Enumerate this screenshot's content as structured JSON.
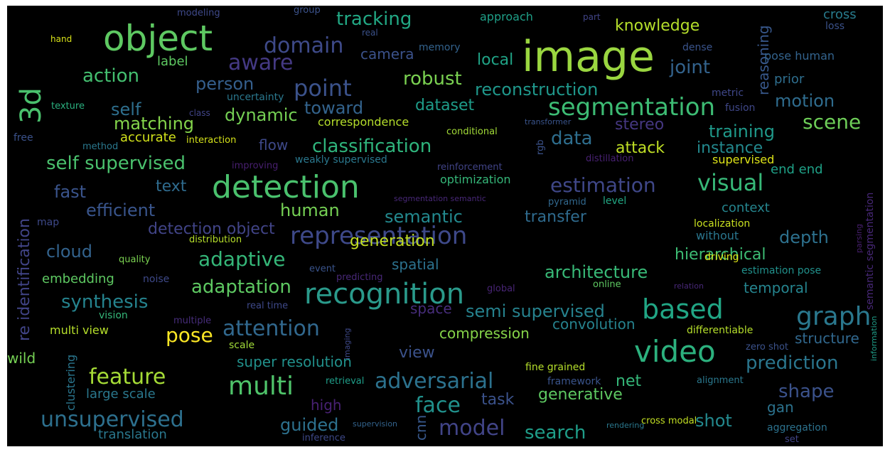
{
  "words": [
    {
      "text": "image",
      "color": "#9ad640"
    },
    {
      "text": "object",
      "color": "#5ec962"
    },
    {
      "text": "detection",
      "color": "#4ac16d"
    },
    {
      "text": "recognition",
      "color": "#2a9a8b"
    },
    {
      "text": "video",
      "color": "#2cb17e"
    },
    {
      "text": "representation",
      "color": "#3e4989"
    },
    {
      "text": "3d",
      "color": "#4ac16d"
    },
    {
      "text": "segmentation",
      "color": "#3dbc74"
    },
    {
      "text": "based",
      "color": "#21a685"
    },
    {
      "text": "graph",
      "color": "#2a788e"
    },
    {
      "text": "multi",
      "color": "#4fc46a"
    },
    {
      "text": "point",
      "color": "#3b528b"
    },
    {
      "text": "domain",
      "color": "#3e4a89"
    },
    {
      "text": "adversarial",
      "color": "#2c728e"
    },
    {
      "text": "unsupervised",
      "color": "#2d708e"
    },
    {
      "text": "model",
      "color": "#414487"
    },
    {
      "text": "attention",
      "color": "#31688e"
    },
    {
      "text": "feature",
      "color": "#a5db36"
    },
    {
      "text": "face",
      "color": "#21918c"
    },
    {
      "text": "visual",
      "color": "#37b878"
    },
    {
      "text": "estimation",
      "color": "#3f4788"
    },
    {
      "text": "prediction",
      "color": "#2a768e"
    },
    {
      "text": "shape",
      "color": "#3b528b"
    },
    {
      "text": "classification",
      "color": "#2fb47c"
    },
    {
      "text": "reconstruction",
      "color": "#1f978b"
    },
    {
      "text": "tracking",
      "color": "#22a884"
    },
    {
      "text": "aware",
      "color": "#443983"
    },
    {
      "text": "scene",
      "color": "#6ece58"
    },
    {
      "text": "self supervised",
      "color": "#4ac16d"
    },
    {
      "text": "synthesis",
      "color": "#25838e"
    },
    {
      "text": "adaptive",
      "color": "#35b779"
    },
    {
      "text": "adaptation",
      "color": "#5ec962"
    },
    {
      "text": "pose",
      "color": "#fde725"
    },
    {
      "text": "semi supervised",
      "color": "#26828e"
    },
    {
      "text": "architecture",
      "color": "#38b977"
    },
    {
      "text": "search",
      "color": "#1f9e89"
    },
    {
      "text": "guided",
      "color": "#2d718e"
    },
    {
      "text": "action",
      "color": "#44bf70"
    },
    {
      "text": "robust",
      "color": "#7ad151"
    },
    {
      "text": "knowledge",
      "color": "#b5de2b"
    },
    {
      "text": "joint",
      "color": "#33638d"
    },
    {
      "text": "dynamic",
      "color": "#75d054"
    },
    {
      "text": "toward",
      "color": "#33638d"
    },
    {
      "text": "dataset",
      "color": "#1e9c89"
    },
    {
      "text": "motion",
      "color": "#2f6c8e"
    },
    {
      "text": "training",
      "color": "#1f998a"
    },
    {
      "text": "matching",
      "color": "#84d44b"
    },
    {
      "text": "self",
      "color": "#2e6f8e"
    },
    {
      "text": "person",
      "color": "#355f8d"
    },
    {
      "text": "camera",
      "color": "#3b528b"
    },
    {
      "text": "local",
      "color": "#20a386"
    },
    {
      "text": "data",
      "color": "#2e6e8e"
    },
    {
      "text": "stereo",
      "color": "#453781"
    },
    {
      "text": "instance",
      "color": "#23898e"
    },
    {
      "text": "attack",
      "color": "#c0df25"
    },
    {
      "text": "fast",
      "color": "#3a548c"
    },
    {
      "text": "text",
      "color": "#2f6b8e"
    },
    {
      "text": "efficient",
      "color": "#39558c"
    },
    {
      "text": "human",
      "color": "#75d054"
    },
    {
      "text": "semantic",
      "color": "#23898e"
    },
    {
      "text": "transfer",
      "color": "#2f6b8e"
    },
    {
      "text": "context",
      "color": "#25858e"
    },
    {
      "text": "depth",
      "color": "#2d718e"
    },
    {
      "text": "cloud",
      "color": "#33638d"
    },
    {
      "text": "detection object",
      "color": "#414487"
    },
    {
      "text": "generation",
      "color": "#c2df23"
    },
    {
      "text": "hierarchical",
      "color": "#3dbc74"
    },
    {
      "text": "spatial",
      "color": "#2c728e"
    },
    {
      "text": "embedding",
      "color": "#5ec962"
    },
    {
      "text": "temporal",
      "color": "#25848e"
    },
    {
      "text": "net",
      "color": "#35b779"
    },
    {
      "text": "generative",
      "color": "#5ec962"
    },
    {
      "text": "task",
      "color": "#3b528b"
    },
    {
      "text": "view",
      "color": "#3b528b"
    },
    {
      "text": "compression",
      "color": "#86d549"
    },
    {
      "text": "convolution",
      "color": "#26828e"
    },
    {
      "text": "super resolution",
      "color": "#21918c"
    },
    {
      "text": "large scale",
      "color": "#2a788e"
    },
    {
      "text": "multi view",
      "color": "#b5de2b"
    },
    {
      "text": "wild",
      "color": "#75d054"
    },
    {
      "text": "cnn",
      "color": "#38588c"
    },
    {
      "text": "gan",
      "color": "#2c738e"
    },
    {
      "text": "shot",
      "color": "#23898e"
    },
    {
      "text": "high",
      "color": "#482173"
    },
    {
      "text": "translation",
      "color": "#2a788e"
    },
    {
      "text": "structure",
      "color": "#31688e"
    },
    {
      "text": "re identification",
      "color": "#414487"
    },
    {
      "text": "clustering",
      "color": "#2a768e"
    },
    {
      "text": "correspondence",
      "color": "#b5de2b"
    },
    {
      "text": "accurate",
      "color": "#d2e21b"
    },
    {
      "text": "flow",
      "color": "#3e4989"
    },
    {
      "text": "space",
      "color": "#472d7b"
    },
    {
      "text": "reasoning",
      "color": "#38588c"
    },
    {
      "text": "pose human",
      "color": "#33638d"
    },
    {
      "text": "prior",
      "color": "#2e6e8e"
    },
    {
      "text": "memory",
      "color": "#33638d"
    },
    {
      "text": "approach",
      "color": "#1fa088"
    },
    {
      "text": "group",
      "color": "#3b528b"
    },
    {
      "text": "modeling",
      "color": "#3e4989"
    },
    {
      "text": "hand",
      "color": "#d8e219"
    },
    {
      "text": "real",
      "color": "#3b528b"
    },
    {
      "text": "part",
      "color": "#414487"
    },
    {
      "text": "cross",
      "color": "#287c8e"
    },
    {
      "text": "loss",
      "color": "#3b528b"
    },
    {
      "text": "dense",
      "color": "#3a548c"
    },
    {
      "text": "label",
      "color": "#5ec962"
    },
    {
      "text": "uncertainty",
      "color": "#2a788e"
    },
    {
      "text": "texture",
      "color": "#2ab07f"
    },
    {
      "text": "class",
      "color": "#414487"
    },
    {
      "text": "metric",
      "color": "#3f4788"
    },
    {
      "text": "fusion",
      "color": "#3f4788"
    },
    {
      "text": "conditional",
      "color": "#a2da37"
    },
    {
      "text": "transformer",
      "color": "#3a548c"
    },
    {
      "text": "free",
      "color": "#3b528b"
    },
    {
      "text": "interaction",
      "color": "#d5e21a"
    },
    {
      "text": "method",
      "color": "#2a788e"
    },
    {
      "text": "rgb",
      "color": "#3b528b"
    },
    {
      "text": "improving",
      "color": "#481f70"
    },
    {
      "text": "weakly supervised",
      "color": "#2a788e"
    },
    {
      "text": "reinforcement",
      "color": "#414487"
    },
    {
      "text": "distillation",
      "color": "#482173"
    },
    {
      "text": "supervised",
      "color": "#dde318"
    },
    {
      "text": "end end",
      "color": "#1fa187"
    },
    {
      "text": "optimization",
      "color": "#35b779"
    },
    {
      "text": "segmentation semantic",
      "color": "#482878"
    },
    {
      "text": "pyramid",
      "color": "#31688e"
    },
    {
      "text": "level",
      "color": "#22a884"
    },
    {
      "text": "map",
      "color": "#3e4989"
    },
    {
      "text": "localization",
      "color": "#c8e020"
    },
    {
      "text": "without",
      "color": "#2a768e"
    },
    {
      "text": "distribution",
      "color": "#b5de2b"
    },
    {
      "text": "quality",
      "color": "#7ad151"
    },
    {
      "text": "event",
      "color": "#3a548c"
    },
    {
      "text": "noise",
      "color": "#3e4989"
    },
    {
      "text": "predicting",
      "color": "#482878"
    },
    {
      "text": "driving",
      "color": "#dde318"
    },
    {
      "text": "estimation pose",
      "color": "#21918c"
    },
    {
      "text": "online",
      "color": "#5ec962"
    },
    {
      "text": "relation",
      "color": "#482878"
    },
    {
      "text": "global",
      "color": "#482475"
    },
    {
      "text": "real time",
      "color": "#3e4989"
    },
    {
      "text": "vision",
      "color": "#35b779"
    },
    {
      "text": "multiple",
      "color": "#472d7b"
    },
    {
      "text": "differentiable",
      "color": "#b5de2b"
    },
    {
      "text": "scale",
      "color": "#a0da39"
    },
    {
      "text": "imaging",
      "color": "#3e4989"
    },
    {
      "text": "zero shot",
      "color": "#3b528b"
    },
    {
      "text": "fine grained",
      "color": "#b5de2b"
    },
    {
      "text": "retrieval",
      "color": "#1f9e89"
    },
    {
      "text": "framework",
      "color": "#3a548c"
    },
    {
      "text": "alignment",
      "color": "#2a788e"
    },
    {
      "text": "cross modal",
      "color": "#c2df23"
    },
    {
      "text": "supervision",
      "color": "#33638d"
    },
    {
      "text": "inference",
      "color": "#3e4989"
    },
    {
      "text": "rendering",
      "color": "#2a788e"
    },
    {
      "text": "aggregation",
      "color": "#2c728e"
    },
    {
      "text": "set",
      "color": "#414487"
    },
    {
      "text": "semantic segmentation",
      "color": "#482878"
    },
    {
      "text": "parsing",
      "color": "#481f70"
    },
    {
      "text": "information",
      "color": "#1f9e89"
    }
  ]
}
